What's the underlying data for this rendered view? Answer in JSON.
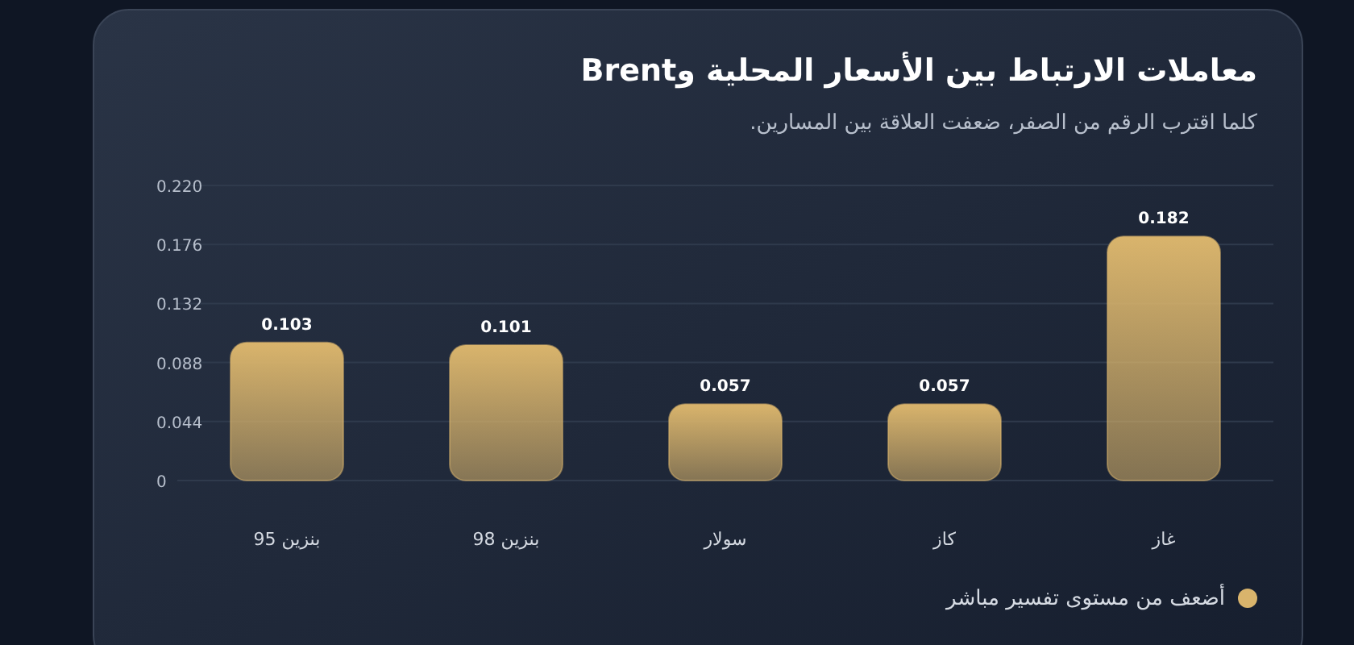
{
  "chart_data": {
    "type": "bar",
    "title": "معاملات الارتباط بين الأسعار المحلية وBrent",
    "subtitle": "كلما اقترب الرقم من الصفر، ضعفت العلاقة بين المسارين.",
    "categories": [
      "بنزين 95",
      "بنزين 98",
      "سولار",
      "كاز",
      "غاز"
    ],
    "series": [
      {
        "name": "أضعف من مستوى تفسير مباشر",
        "color": "#d9b46c",
        "values": [
          0.103,
          0.101,
          0.057,
          0.057,
          0.182
        ]
      }
    ],
    "ylim": [
      0,
      0.22
    ],
    "yticks": [
      0,
      {
        "value": 0.044,
        "label": "0.044"
      },
      {
        "value": 0.088,
        "label": "0.088"
      },
      {
        "value": 0.132,
        "label": "0.132"
      },
      {
        "value": 0.176,
        "label": "0.176"
      },
      {
        "value": 0.22,
        "label": "0.220"
      }
    ],
    "grid": "y",
    "legend": "bottom right",
    "data_labels": true
  }
}
